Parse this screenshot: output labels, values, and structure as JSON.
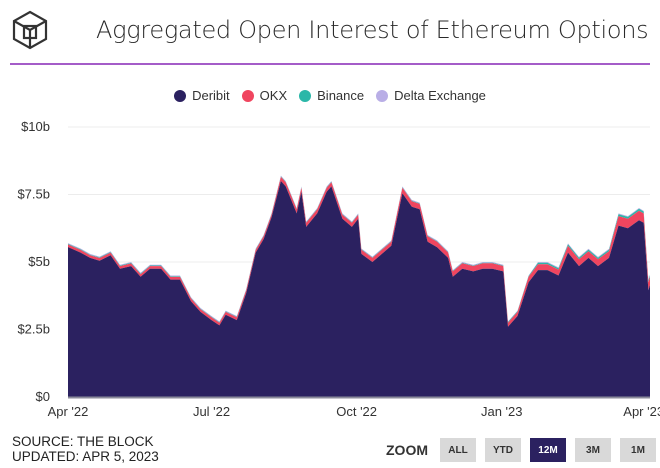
{
  "header": {
    "title": "Aggregated Open Interest of Ethereum Options",
    "logo": "The Block"
  },
  "footer": {
    "source": "SOURCE: THE BLOCK",
    "updated": "UPDATED: APR 5, 2023"
  },
  "zoom": {
    "label": "ZOOM",
    "buttons": [
      "ALL",
      "YTD",
      "12M",
      "3M",
      "1M"
    ],
    "active": "12M"
  },
  "colors": {
    "accent": "#a45cc8",
    "Deribit": "#2b2160",
    "OKX": "#f0455f",
    "Binance": "#2bb7a8",
    "Delta Exchange": "#b9aee6"
  },
  "chart_data": {
    "type": "area",
    "stacked": true,
    "title": "Aggregated Open Interest of Ethereum Options",
    "legend_position": "top",
    "grid": true,
    "ylim": [
      0,
      10
    ],
    "y_ticks": [
      "$0",
      "$2.5b",
      "$5b",
      "$7.5b",
      "$10b"
    ],
    "y_tick_values": [
      0,
      2.5,
      5,
      7.5,
      10
    ],
    "x_ticks": [
      "Apr '22",
      "Jul '22",
      "Oct '22",
      "Jan '23",
      "Apr '23"
    ],
    "x_tick_dates": [
      "2022-04-01",
      "2022-07-01",
      "2022-10-01",
      "2023-01-01",
      "2023-04-01"
    ],
    "xlim": [
      "2022-04-01",
      "2023-04-05"
    ],
    "units": "USD billions",
    "x": [
      "2022-04-01",
      "2022-04-09",
      "2022-04-15",
      "2022-04-21",
      "2022-04-28",
      "2022-05-04",
      "2022-05-11",
      "2022-05-17",
      "2022-05-23",
      "2022-05-30",
      "2022-06-05",
      "2022-06-11",
      "2022-06-18",
      "2022-06-24",
      "2022-07-01",
      "2022-07-06",
      "2022-07-10",
      "2022-07-17",
      "2022-07-23",
      "2022-07-29",
      "2022-08-03",
      "2022-08-08",
      "2022-08-14",
      "2022-08-17",
      "2022-08-24",
      "2022-08-27",
      "2022-08-30",
      "2022-09-06",
      "2022-09-12",
      "2022-09-15",
      "2022-09-22",
      "2022-09-28",
      "2022-10-02",
      "2022-10-04",
      "2022-10-11",
      "2022-10-17",
      "2022-10-23",
      "2022-10-30",
      "2022-11-05",
      "2022-11-10",
      "2022-11-15",
      "2022-11-21",
      "2022-11-28",
      "2022-12-01",
      "2022-12-07",
      "2022-12-14",
      "2022-12-20",
      "2022-12-26",
      "2023-01-02",
      "2023-01-05",
      "2023-01-11",
      "2023-01-18",
      "2023-01-24",
      "2023-01-30",
      "2023-02-06",
      "2023-02-12",
      "2023-02-19",
      "2023-02-25",
      "2023-03-03",
      "2023-03-10",
      "2023-03-16",
      "2023-03-22",
      "2023-03-29",
      "2023-04-01",
      "2023-04-04",
      "2023-04-05"
    ],
    "series": [
      {
        "name": "Deribit",
        "values": [
          5.55,
          5.35,
          5.15,
          5.05,
          5.25,
          4.75,
          4.85,
          4.45,
          4.75,
          4.75,
          4.35,
          4.35,
          3.55,
          3.15,
          2.85,
          2.65,
          3.05,
          2.85,
          3.85,
          5.35,
          5.85,
          6.65,
          8.0,
          7.8,
          6.8,
          7.6,
          6.3,
          6.8,
          7.6,
          7.8,
          6.6,
          6.3,
          6.6,
          5.3,
          5.0,
          5.3,
          5.6,
          7.55,
          7.05,
          6.95,
          5.75,
          5.55,
          5.15,
          4.45,
          4.75,
          4.65,
          4.75,
          4.75,
          4.65,
          2.6,
          3.0,
          4.25,
          4.7,
          4.7,
          4.5,
          5.35,
          4.85,
          5.15,
          4.85,
          5.15,
          6.35,
          6.25,
          6.55,
          6.45,
          3.95,
          4.15
        ]
      },
      {
        "name": "OKX",
        "values": [
          0.1,
          0.1,
          0.1,
          0.1,
          0.1,
          0.1,
          0.1,
          0.1,
          0.1,
          0.1,
          0.1,
          0.1,
          0.1,
          0.1,
          0.1,
          0.1,
          0.1,
          0.1,
          0.1,
          0.1,
          0.1,
          0.1,
          0.15,
          0.15,
          0.15,
          0.15,
          0.15,
          0.15,
          0.15,
          0.15,
          0.15,
          0.15,
          0.15,
          0.15,
          0.15,
          0.15,
          0.15,
          0.2,
          0.2,
          0.2,
          0.2,
          0.2,
          0.2,
          0.2,
          0.2,
          0.2,
          0.2,
          0.2,
          0.2,
          0.15,
          0.15,
          0.2,
          0.22,
          0.22,
          0.22,
          0.25,
          0.25,
          0.25,
          0.25,
          0.25,
          0.35,
          0.35,
          0.35,
          0.35,
          0.3,
          0.3
        ]
      },
      {
        "name": "Binance",
        "values": [
          0.02,
          0.02,
          0.02,
          0.02,
          0.02,
          0.02,
          0.02,
          0.02,
          0.02,
          0.02,
          0.02,
          0.02,
          0.02,
          0.02,
          0.02,
          0.02,
          0.02,
          0.02,
          0.02,
          0.02,
          0.02,
          0.02,
          0.02,
          0.02,
          0.02,
          0.02,
          0.02,
          0.02,
          0.02,
          0.02,
          0.02,
          0.02,
          0.02,
          0.02,
          0.02,
          0.02,
          0.02,
          0.02,
          0.02,
          0.02,
          0.02,
          0.02,
          0.02,
          0.02,
          0.02,
          0.02,
          0.02,
          0.02,
          0.02,
          0.03,
          0.03,
          0.03,
          0.05,
          0.05,
          0.05,
          0.06,
          0.06,
          0.06,
          0.06,
          0.06,
          0.07,
          0.07,
          0.07,
          0.07,
          0.06,
          0.06
        ]
      },
      {
        "name": "Delta Exchange",
        "values": [
          0.03,
          0.03,
          0.03,
          0.03,
          0.03,
          0.03,
          0.03,
          0.03,
          0.03,
          0.03,
          0.03,
          0.03,
          0.03,
          0.03,
          0.03,
          0.03,
          0.03,
          0.03,
          0.03,
          0.03,
          0.03,
          0.03,
          0.03,
          0.03,
          0.03,
          0.03,
          0.03,
          0.03,
          0.03,
          0.03,
          0.03,
          0.03,
          0.03,
          0.03,
          0.03,
          0.03,
          0.03,
          0.03,
          0.03,
          0.03,
          0.03,
          0.03,
          0.03,
          0.03,
          0.03,
          0.03,
          0.03,
          0.03,
          0.03,
          0.02,
          0.02,
          0.02,
          0.03,
          0.03,
          0.03,
          0.03,
          0.03,
          0.03,
          0.03,
          0.03,
          0.03,
          0.03,
          0.03,
          0.03,
          0.03,
          0.03
        ]
      }
    ]
  }
}
